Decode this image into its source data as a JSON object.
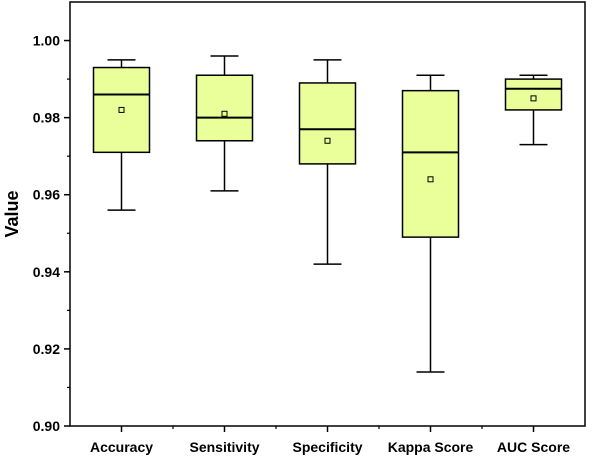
{
  "chart_data": {
    "type": "box",
    "title": "",
    "xlabel": "",
    "ylabel": "Value",
    "ylim": [
      0.9,
      1.01
    ],
    "yticks": [
      "0.90",
      "0.92",
      "0.94",
      "0.96",
      "0.98",
      "1.00"
    ],
    "categories": [
      "Accuracy",
      "Sensitivity",
      "Specificity",
      "Kappa Score",
      "AUC Score"
    ],
    "box_color": "#eaff99",
    "boxes": [
      {
        "category": "Accuracy",
        "min": 0.956,
        "q1": 0.971,
        "median": 0.986,
        "q3": 0.993,
        "max": 0.995,
        "mean": 0.982
      },
      {
        "category": "Sensitivity",
        "min": 0.961,
        "q1": 0.974,
        "median": 0.98,
        "q3": 0.991,
        "max": 0.996,
        "mean": 0.981
      },
      {
        "category": "Specificity",
        "min": 0.942,
        "q1": 0.968,
        "median": 0.977,
        "q3": 0.989,
        "max": 0.995,
        "mean": 0.974
      },
      {
        "category": "Kappa Score",
        "min": 0.914,
        "q1": 0.949,
        "median": 0.971,
        "q3": 0.987,
        "max": 0.991,
        "mean": 0.964
      },
      {
        "category": "AUC Score",
        "min": 0.973,
        "q1": 0.982,
        "median": 0.9875,
        "q3": 0.99,
        "max": 0.991,
        "mean": 0.985
      }
    ]
  }
}
